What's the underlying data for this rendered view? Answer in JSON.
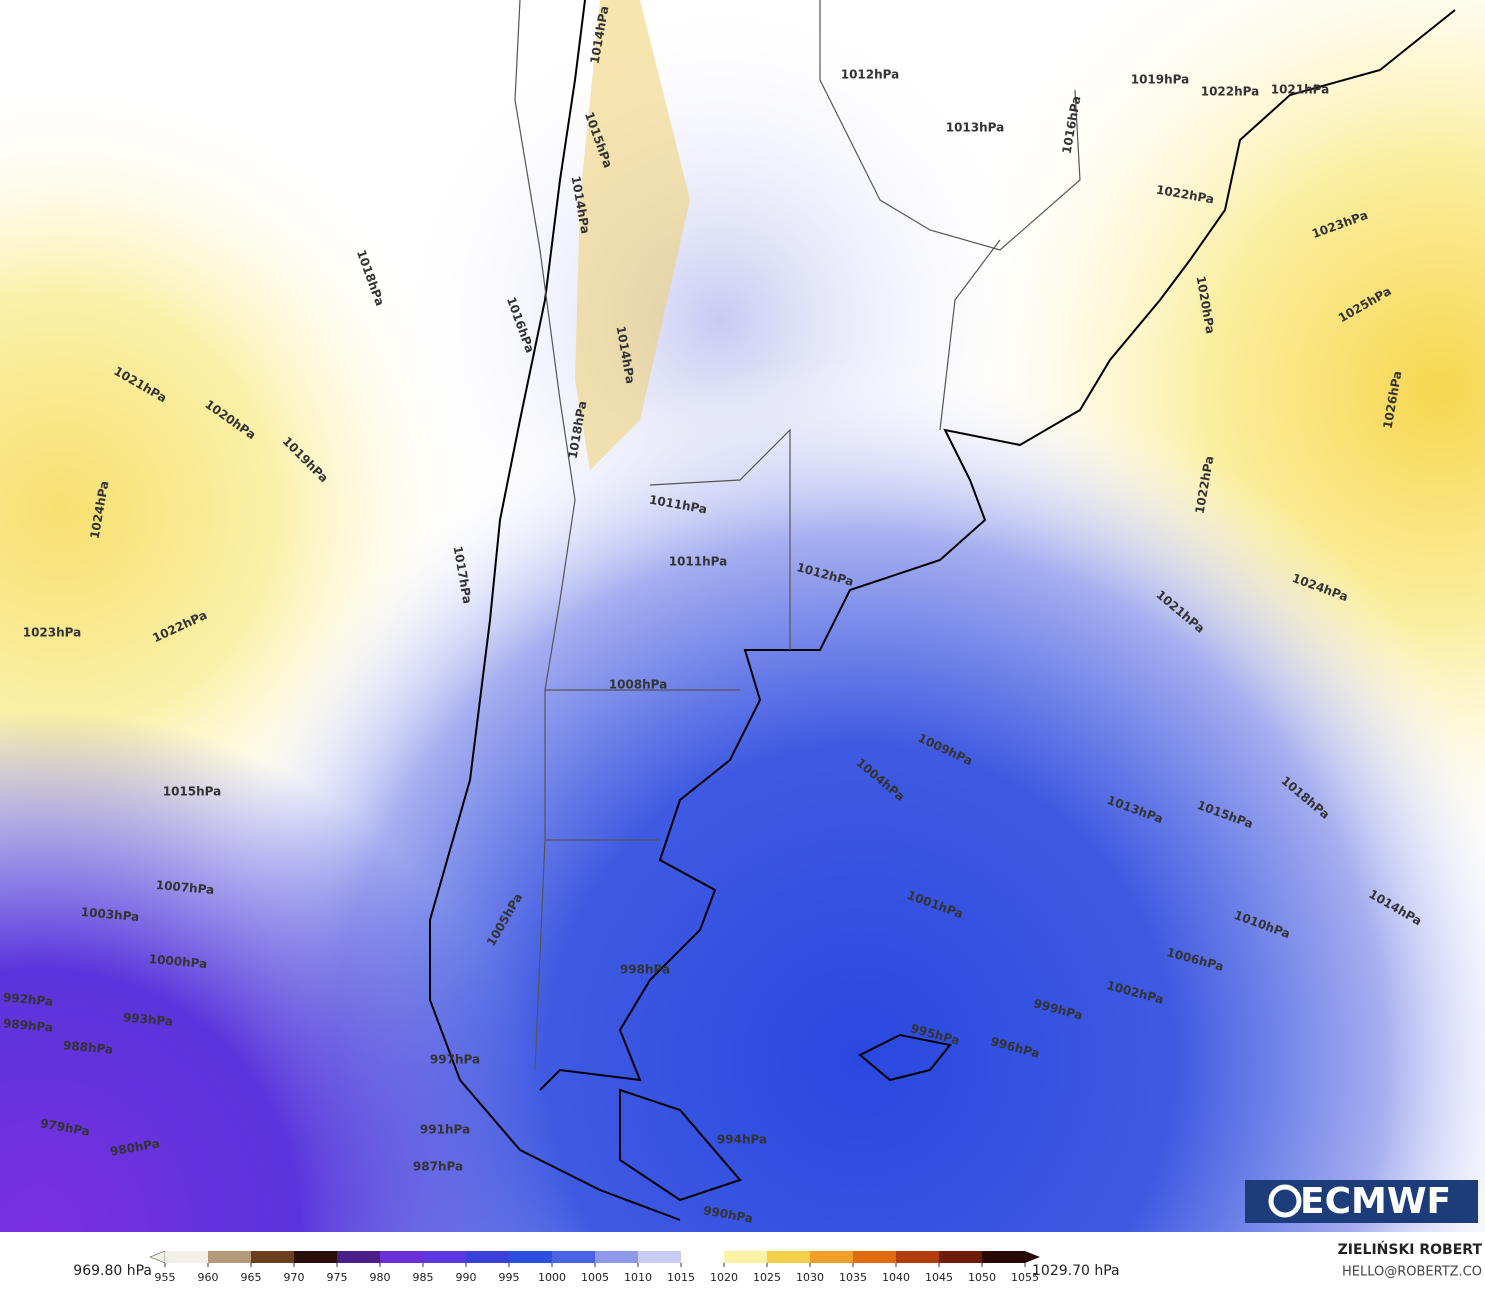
{
  "map": {
    "contour_labels": [
      "1012hPa",
      "1013hPa",
      "1014hPa",
      "1016hPa",
      "1019hPa",
      "1022hPa",
      "1021hPa",
      "1022hPa",
      "1023hPa",
      "1025hPa",
      "1026hPa",
      "1020hPa",
      "1022hPa",
      "1024hPa",
      "1021hPa",
      "1018hPa",
      "1015hPa",
      "1013hPa",
      "1009hPa",
      "1004hPa",
      "1001hPa",
      "1010hPa",
      "1014hPa",
      "1006hPa",
      "1002hPa",
      "999hPa",
      "996hPa",
      "995hPa",
      "994hPa",
      "998hPa",
      "1005hPa",
      "997hPa",
      "991hPa",
      "987hPa",
      "990hPa",
      "1008hPa",
      "1011hPa",
      "1011hPa",
      "1012hPa",
      "1015hPa",
      "1007hPa",
      "1003hPa",
      "1000hPa",
      "993hPa",
      "992hPa",
      "989hPa",
      "988hPa",
      "979hPa",
      "980hPa",
      "1023hPa",
      "1022hPa",
      "1024hPa",
      "1021hPa",
      "1020hPa",
      "1019hPa",
      "1018hPa",
      "1017hPa",
      "1016hPa",
      "1018hPa",
      "1015hPa",
      "1014hPa",
      "1014hPa"
    ],
    "logo": "ECMWF"
  },
  "colorbar": {
    "min_label": "969.80 hPa",
    "max_label": "1029.70 hPa",
    "ticks": [
      955,
      960,
      965,
      970,
      975,
      980,
      985,
      990,
      995,
      1000,
      1005,
      1010,
      1015,
      1020,
      1025,
      1030,
      1035,
      1040,
      1045,
      1050,
      1055
    ],
    "colors": [
      "#f3efe9",
      "#b59a7a",
      "#6b3f1e",
      "#2a0f0a",
      "#4a1f8a",
      "#6a2fd6",
      "#5b38e0",
      "#3a40d8",
      "#2c4fe0",
      "#4a62e4",
      "#8e99ec",
      "#c8ccf4",
      "#ffffff",
      "#fbf2a6",
      "#f5cf4a",
      "#f0a028",
      "#e06a10",
      "#b23c08",
      "#6e1c06",
      "#2a0a04"
    ]
  },
  "credits": {
    "author": "ZIELIŃSKI ROBERT",
    "email": "HELLO@ROBERTZ.CO"
  }
}
